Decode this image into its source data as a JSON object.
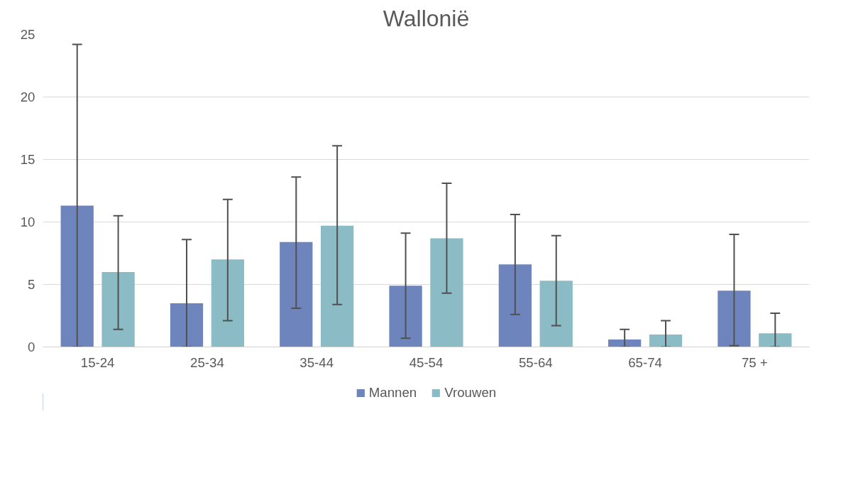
{
  "chart_data": {
    "type": "bar",
    "title": "Wallonië",
    "categories": [
      "15-24",
      "25-34",
      "35-44",
      "45-54",
      "55-64",
      "65-74",
      "75 +"
    ],
    "series": [
      {
        "name": "Mannen",
        "color": "#6e84bd",
        "values": [
          11.3,
          3.5,
          8.4,
          4.9,
          6.6,
          0.6,
          4.5
        ],
        "errors": [
          [
            0,
            24.2
          ],
          [
            0,
            8.6
          ],
          [
            3.1,
            13.6
          ],
          [
            0.7,
            9.1
          ],
          [
            2.6,
            10.6
          ],
          [
            0,
            1.4
          ],
          [
            0.1,
            9.0
          ]
        ]
      },
      {
        "name": "Vrouwen",
        "color": "#8bbcc5",
        "values": [
          6.0,
          7.0,
          9.7,
          8.7,
          5.3,
          1.0,
          1.1
        ],
        "errors": [
          [
            1.4,
            10.5
          ],
          [
            2.1,
            11.8
          ],
          [
            3.4,
            16.1
          ],
          [
            4.3,
            13.1
          ],
          [
            1.7,
            8.9
          ],
          [
            0,
            2.1
          ],
          [
            0,
            2.7
          ]
        ]
      }
    ],
    "ylim": [
      0,
      25
    ],
    "yticks": [
      0,
      5,
      10,
      15,
      20,
      25
    ],
    "grid": "y",
    "legend": "bottom"
  }
}
